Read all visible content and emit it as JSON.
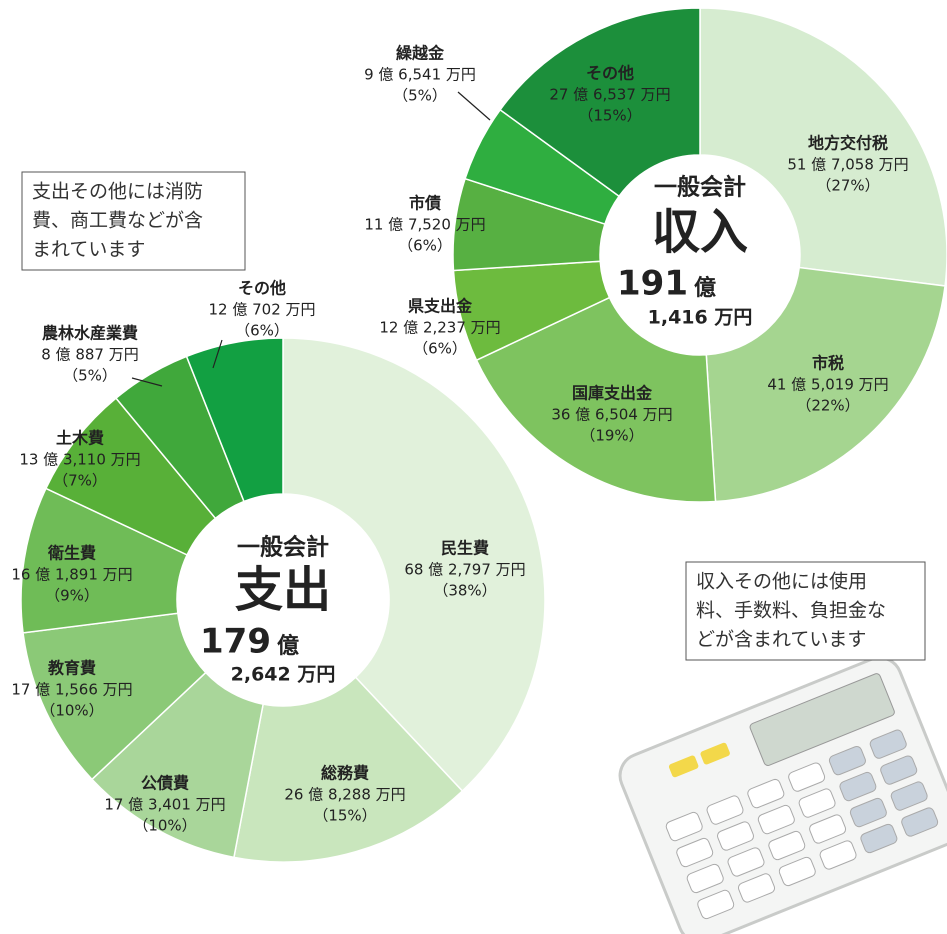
{
  "chart_data": [
    {
      "type": "pie",
      "title": "一般会計",
      "subtitle": "収入",
      "total": "191",
      "total_unit": "億",
      "total_sub": "1,416 万円",
      "categories": [
        "地方交付税",
        "市税",
        "国庫支出金",
        "県支出金",
        "市債",
        "繰越金",
        "その他"
      ],
      "amounts": [
        "51 億 7,058 万円",
        "41 億 5,019 万円",
        "36 億 6,504 万円",
        "12 億 2,237 万円",
        "11 億 7,520 万円",
        "9 億 6,541 万円",
        "27 億 6,537 万円"
      ],
      "values": [
        27,
        22,
        19,
        6,
        6,
        5,
        15
      ],
      "value_labels": [
        "（27%）",
        "（22%）",
        "（19%）",
        "（6%）",
        "（6%）",
        "（5%）",
        "（15%）"
      ],
      "colors": [
        "#d6ecd0",
        "#a5d590",
        "#7ec35f",
        "#6dbb3e",
        "#57b042",
        "#2fae40",
        "#1c8f3b"
      ]
    },
    {
      "type": "pie",
      "title": "一般会計",
      "subtitle": "支出",
      "total": "179",
      "total_unit": "億",
      "total_sub": "2,642 万円",
      "categories": [
        "民生費",
        "総務費",
        "公債費",
        "教育費",
        "衛生費",
        "土木費",
        "農林水産業費",
        "その他"
      ],
      "amounts": [
        "68 億 2,797 万円",
        "26 億 8,288 万円",
        "17 億 3,401 万円",
        "17 億 1,566 万円",
        "16 億 1,891 万円",
        "13 億 3,110 万円",
        "8 億 887 万円",
        "12 億 702 万円"
      ],
      "values": [
        38,
        15,
        10,
        10,
        9,
        7,
        5,
        6
      ],
      "value_labels": [
        "（38%）",
        "（15%）",
        "（10%）",
        "（10%）",
        "（9%）",
        "（7%）",
        "（5%）",
        "（6%）"
      ],
      "colors": [
        "#e1f1db",
        "#c9e6bd",
        "#a9d69a",
        "#8bc977",
        "#6fbc57",
        "#58b038",
        "#40a83b",
        "#12a042"
      ]
    }
  ],
  "notes": [
    {
      "lines": [
        "支出その他には消防",
        "費、商工費などが含",
        "まれています"
      ]
    },
    {
      "lines": [
        "収入その他には使用",
        "料、手数料、負担金な",
        "どが含まれています"
      ]
    }
  ]
}
